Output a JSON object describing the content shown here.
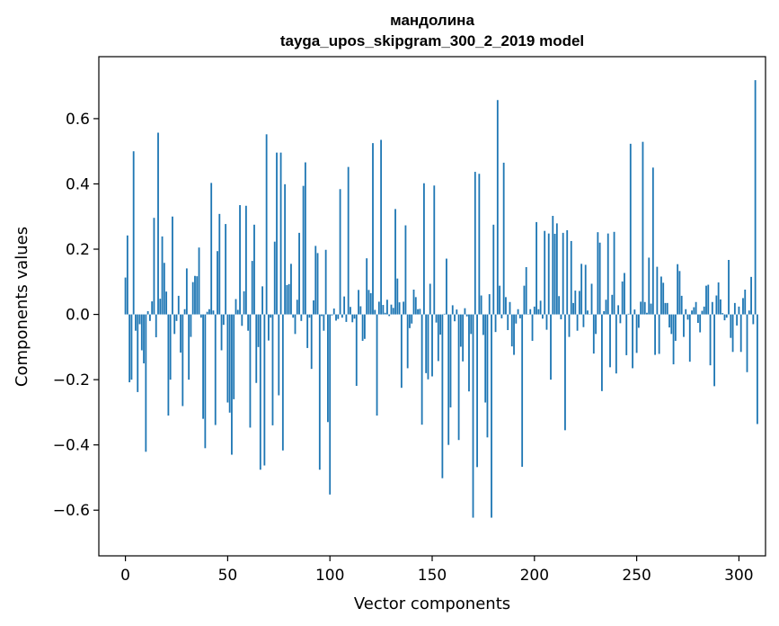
{
  "chart_data": {
    "type": "bar",
    "title": "мандолина",
    "subtitle": "tayga_upos_skipgram_300_2_2019 model",
    "xlabel": "Vector components",
    "ylabel": "Components values",
    "xlim": [
      -13,
      313
    ],
    "ylim": [
      -0.74,
      0.79
    ],
    "xticks": [
      0,
      50,
      100,
      150,
      200,
      250,
      300
    ],
    "yticks": [
      -0.6,
      -0.4,
      -0.2,
      0.0,
      0.2,
      0.4,
      0.6
    ],
    "ytick_labels": [
      "−0.6",
      "−0.4",
      "−0.2",
      "0.0",
      "0.2",
      "0.4",
      "0.6"
    ],
    "xtick_labels": [
      "0",
      "50",
      "100",
      "150",
      "200",
      "250",
      "300"
    ],
    "bar_color": "#1f77b4",
    "values": [
      0.113,
      0.242,
      -0.208,
      -0.2,
      0.5,
      -0.05,
      -0.238,
      -0.03,
      -0.11,
      -0.15,
      -0.421,
      0.01,
      -0.02,
      0.04,
      0.296,
      -0.07,
      0.557,
      0.048,
      0.239,
      0.158,
      0.07,
      -0.31,
      -0.2,
      0.3,
      -0.06,
      -0.02,
      0.057,
      -0.117,
      -0.281,
      0.016,
      0.141,
      -0.2,
      -0.069,
      0.099,
      0.118,
      0.117,
      0.205,
      -0.01,
      -0.32,
      -0.41,
      0.008,
      0.016,
      0.403,
      0.012,
      -0.339,
      0.194,
      0.308,
      -0.11,
      -0.032,
      0.277,
      -0.27,
      -0.301,
      -0.43,
      -0.26,
      0.047,
      0.014,
      0.335,
      -0.035,
      0.071,
      0.333,
      -0.05,
      -0.347,
      0.164,
      0.275,
      -0.21,
      -0.1,
      -0.476,
      0.086,
      -0.463,
      0.552,
      -0.08,
      -0.01,
      -0.34,
      0.223,
      0.496,
      -0.248,
      0.496,
      -0.417,
      0.399,
      0.09,
      0.093,
      0.155,
      -0.01,
      -0.06,
      0.045,
      0.25,
      -0.02,
      0.394,
      0.466,
      -0.103,
      -0.01,
      -0.167,
      0.043,
      0.21,
      0.188,
      -0.476,
      -0.005,
      -0.05,
      0.198,
      -0.33,
      -0.552,
      -0.003,
      0.018,
      -0.019,
      -0.014,
      0.384,
      -0.01,
      0.055,
      -0.023,
      0.452,
      0.023,
      -0.024,
      -0.013,
      -0.219,
      0.075,
      0.025,
      -0.081,
      -0.075,
      0.172,
      0.075,
      0.065,
      0.525,
      0.014,
      -0.31,
      0.039,
      0.535,
      0.029,
      0.005,
      0.045,
      -0.005,
      0.03,
      0.02,
      0.323,
      0.11,
      0.037,
      -0.225,
      0.039,
      0.273,
      -0.165,
      -0.042,
      -0.028,
      0.076,
      0.053,
      0.016,
      0.017,
      -0.338,
      0.402,
      -0.18,
      -0.199,
      0.094,
      -0.19,
      0.395,
      -0.025,
      -0.143,
      -0.062,
      -0.502,
      0.002,
      0.171,
      -0.4,
      -0.285,
      0.028,
      -0.021,
      0.015,
      -0.385,
      -0.099,
      -0.144,
      0.019,
      -0.006,
      -0.236,
      -0.06,
      -0.623,
      0.437,
      -0.468,
      0.431,
      0.058,
      -0.063,
      -0.27,
      -0.377,
      0.062,
      -0.623,
      0.275,
      -0.054,
      0.657,
      0.088,
      -0.012,
      0.465,
      0.053,
      -0.048,
      0.038,
      -0.098,
      -0.124,
      -0.028,
      0.016,
      -0.012,
      -0.467,
      0.088,
      0.145,
      -0.001,
      0.016,
      -0.081,
      0.024,
      0.283,
      0.016,
      0.042,
      -0.013,
      0.256,
      -0.047,
      0.248,
      -0.2,
      0.302,
      0.247,
      0.279,
      0.056,
      -0.015,
      0.25,
      -0.355,
      0.258,
      -0.069,
      0.225,
      0.035,
      0.073,
      -0.05,
      0.072,
      0.155,
      -0.039,
      0.152,
      0.012,
      -0.001,
      0.094,
      -0.12,
      -0.06,
      0.252,
      0.22,
      -0.235,
      0.01,
      0.045,
      0.248,
      -0.162,
      0.06,
      0.253,
      -0.181,
      0.028,
      -0.027,
      0.101,
      0.127,
      -0.125,
      0.002,
      0.523,
      -0.165,
      0.015,
      -0.118,
      -0.041,
      0.039,
      0.529,
      0.038,
      0.005,
      0.174,
      0.033,
      0.45,
      -0.124,
      0.146,
      -0.121,
      0.116,
      0.097,
      0.035,
      0.035,
      -0.04,
      -0.06,
      -0.153,
      -0.081,
      0.154,
      0.133,
      0.057,
      -0.069,
      0.016,
      -0.016,
      -0.145,
      0.012,
      0.022,
      0.038,
      -0.026,
      -0.055,
      0.011,
      0.024,
      0.088,
      0.091,
      -0.156,
      0.038,
      -0.22,
      0.058,
      0.098,
      0.046,
      0.004,
      -0.018,
      -0.01,
      0.167,
      -0.072,
      -0.115,
      0.035,
      -0.034,
      0.024,
      -0.115,
      0.05,
      0.076,
      -0.177,
      0.012,
      0.115,
      -0.03,
      0.718,
      -0.336
    ]
  }
}
